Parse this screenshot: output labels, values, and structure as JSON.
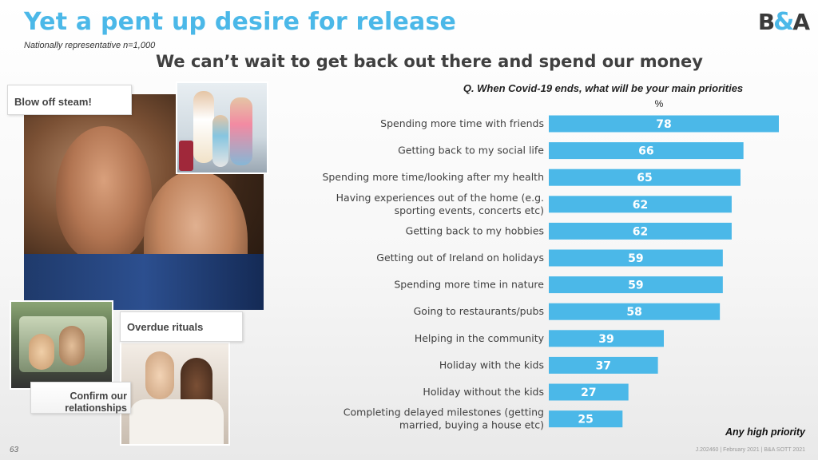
{
  "header": {
    "title": "Yet a pent up desire for release",
    "subtitle": "Nationally representative n=1,000",
    "headline": "We can’t wait to get back out there and spend our money",
    "logo_left": "B",
    "logo_amp": "&",
    "logo_right": "A"
  },
  "collage": {
    "tag_steam": "Blow off steam!",
    "tag_rituals": "Overdue rituals",
    "tag_confirm_line1": "Confirm our",
    "tag_confirm_line2": "relationships"
  },
  "chart_data": {
    "type": "bar",
    "orientation": "horizontal",
    "title": "Q. When Covid-19 ends, what will be your main priorities",
    "unit_label": "%",
    "categories": [
      [
        "Spending more time with friends"
      ],
      [
        "Getting back to my social life"
      ],
      [
        "Spending more time/looking after my health"
      ],
      [
        "Having experiences out of the home (e.g.",
        "sporting events, concerts etc)"
      ],
      [
        "Getting back to my hobbies"
      ],
      [
        "Getting out of Ireland on holidays"
      ],
      [
        "Spending more time in nature"
      ],
      [
        "Going to restaurants/pubs"
      ],
      [
        "Helping in the community"
      ],
      [
        "Holiday with the kids"
      ],
      [
        "Holiday without the kids"
      ],
      [
        "Completing delayed milestones (getting",
        "married, buying a house etc)"
      ]
    ],
    "values": [
      78,
      66,
      65,
      62,
      62,
      59,
      59,
      58,
      39,
      37,
      27,
      25
    ],
    "xlim": [
      0,
      78
    ],
    "bar_color": "#4bb8e8",
    "note": "Any high priority"
  },
  "footer": {
    "page_number": "63",
    "reference": "J.202460 | February 2021 | B&A SOTT 2021"
  }
}
